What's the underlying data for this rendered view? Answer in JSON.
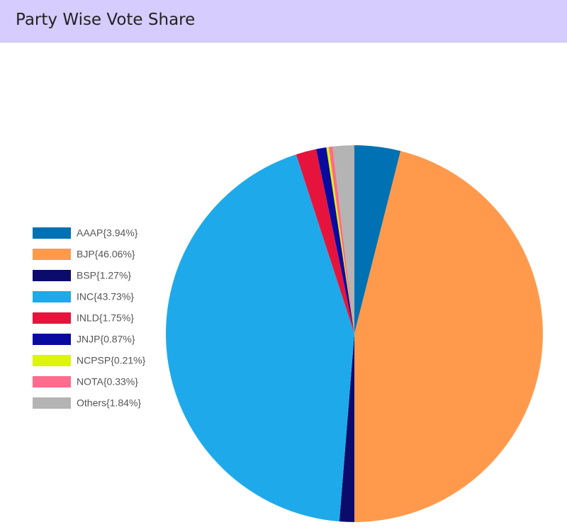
{
  "chart_data": {
    "type": "pie",
    "title": "Party Wise Vote Share",
    "categories": [
      "AAAP{3.94%}",
      "BJP{46.06%}",
      "BSP{1.27%}",
      "INC{43.73%}",
      "INLD{1.75%}",
      "JNJP{0.87%}",
      "NCPSP{0.21%}",
      "NOTA{0.33%}",
      "Others{1.84%}"
    ],
    "values": [
      3.94,
      46.06,
      1.27,
      43.73,
      1.75,
      0.87,
      0.21,
      0.33,
      1.84
    ],
    "colors": [
      "#0071b2",
      "#ff9a4d",
      "#0b0b6b",
      "#1eaaea",
      "#e6143c",
      "#0a0aa0",
      "#dcf50a",
      "#ff6b8c",
      "#b4b4b4"
    ],
    "legend": "left"
  }
}
